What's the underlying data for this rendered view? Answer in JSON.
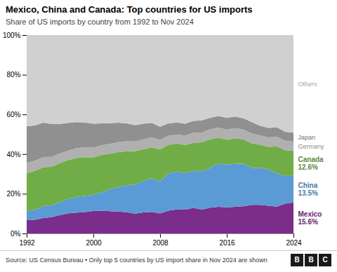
{
  "chart_data": {
    "type": "area",
    "stacked": true,
    "title": "Mexico, China and Canada: Top countries for US imports",
    "subtitle": "Share of US imports by country from 1992 to Nov 2024",
    "source": "Source: US Census Bureau • Only top 5 countries by US import share in Nov 2024 are shown",
    "logo": "BBC",
    "x": [
      1992,
      1993,
      1994,
      1995,
      1996,
      1997,
      1998,
      1999,
      2000,
      2001,
      2002,
      2003,
      2004,
      2005,
      2006,
      2007,
      2008,
      2009,
      2010,
      2011,
      2012,
      2013,
      2014,
      2015,
      2016,
      2017,
      2018,
      2019,
      2020,
      2021,
      2022,
      2023,
      2024
    ],
    "series": [
      {
        "name": "Mexico",
        "color": "#7b2d8b",
        "values": [
          6.7,
          6.9,
          7.8,
          8.2,
          9.3,
          10.2,
          10.5,
          10.8,
          11.3,
          11.5,
          11.2,
          11.0,
          10.7,
          10.0,
          10.6,
          10.9,
          10.1,
          11.5,
          12.1,
          12.0,
          12.9,
          12.0,
          13.0,
          13.4,
          13.2,
          13.4,
          13.7,
          14.4,
          14.4,
          14.0,
          13.5,
          15.0,
          15.6
        ],
        "value_labels": [
          null,
          null,
          null,
          null,
          null,
          null,
          null,
          null,
          null,
          null,
          null,
          null,
          null,
          null,
          null,
          null,
          null,
          null,
          null,
          null,
          null,
          null,
          null,
          null,
          null,
          null,
          null,
          null,
          null,
          null,
          null,
          null,
          "15.6%"
        ]
      },
      {
        "name": "China",
        "color": "#5b9bd5",
        "values": [
          4.6,
          5.1,
          5.9,
          6.0,
          6.5,
          7.2,
          8.0,
          8.2,
          8.2,
          9.3,
          11.1,
          12.5,
          13.7,
          14.6,
          15.9,
          16.9,
          16.1,
          18.7,
          19.1,
          18.4,
          18.6,
          19.4,
          20.0,
          21.9,
          21.5,
          21.7,
          21.5,
          18.6,
          18.7,
          18.2,
          16.8,
          14.0,
          13.5
        ],
        "value_labels": [
          null,
          null,
          null,
          null,
          null,
          null,
          null,
          null,
          null,
          null,
          null,
          null,
          null,
          null,
          null,
          null,
          null,
          null,
          null,
          null,
          null,
          null,
          null,
          null,
          null,
          null,
          null,
          null,
          null,
          null,
          null,
          null,
          "13.5%"
        ]
      },
      {
        "name": "Canada",
        "color": "#70ad47",
        "values": [
          19.0,
          19.5,
          19.7,
          19.4,
          19.7,
          19.6,
          19.5,
          19.4,
          18.8,
          18.8,
          17.9,
          17.5,
          17.0,
          16.8,
          16.0,
          15.6,
          16.1,
          14.5,
          14.1,
          14.2,
          14.2,
          14.5,
          14.4,
          13.0,
          12.5,
          12.8,
          12.2,
          12.4,
          11.6,
          11.4,
          13.6,
          13.0,
          12.6
        ],
        "value_labels": [
          null,
          null,
          null,
          null,
          null,
          null,
          null,
          null,
          null,
          null,
          null,
          null,
          null,
          null,
          null,
          null,
          null,
          null,
          null,
          null,
          null,
          null,
          null,
          null,
          null,
          null,
          null,
          null,
          null,
          null,
          null,
          null,
          "12.6%"
        ]
      },
      {
        "name": "Germany",
        "color": "#b0b0b0",
        "values": [
          5.3,
          5.2,
          5.1,
          5.0,
          4.9,
          4.8,
          5.0,
          5.0,
          5.0,
          4.9,
          4.9,
          5.0,
          5.1,
          5.0,
          4.9,
          5.0,
          4.9,
          4.6,
          4.5,
          4.8,
          5.0,
          5.0,
          5.2,
          5.1,
          5.2,
          5.2,
          5.0,
          5.0,
          4.7,
          4.8,
          4.9,
          4.7,
          4.6
        ]
      },
      {
        "name": "Japan",
        "color": "#909090",
        "values": [
          18.5,
          17.7,
          17.3,
          16.5,
          14.8,
          13.9,
          13.1,
          12.5,
          12.0,
          11.0,
          10.5,
          9.8,
          9.0,
          8.2,
          7.9,
          7.3,
          6.6,
          6.2,
          6.1,
          5.9,
          6.0,
          6.1,
          5.7,
          5.8,
          5.9,
          5.8,
          5.6,
          5.7,
          4.8,
          4.8,
          4.7,
          4.5,
          4.5
        ]
      },
      {
        "name": "Others",
        "color": "#d0d0d0",
        "values": [
          45.9,
          45.6,
          44.2,
          44.9,
          44.8,
          44.3,
          43.9,
          44.1,
          44.7,
          44.5,
          44.4,
          44.2,
          44.5,
          45.4,
          44.7,
          44.3,
          46.2,
          44.5,
          44.1,
          44.7,
          43.3,
          43.0,
          41.7,
          40.8,
          41.7,
          41.1,
          42.0,
          43.9,
          45.8,
          46.8,
          46.5,
          48.8,
          49.2
        ]
      }
    ],
    "xlim": [
      1992,
      2024
    ],
    "xticks": [
      1992,
      2000,
      2008,
      2016,
      2024
    ],
    "ylim": [
      0,
      100
    ],
    "yticks": [
      {
        "value": 0,
        "label": "0%"
      },
      {
        "value": 20,
        "label": "20%"
      },
      {
        "value": 40,
        "label": "40%"
      },
      {
        "value": 60,
        "label": "60%"
      },
      {
        "value": 80,
        "label": "80%"
      },
      {
        "value": 100,
        "label": "100%"
      }
    ],
    "grid": true
  }
}
